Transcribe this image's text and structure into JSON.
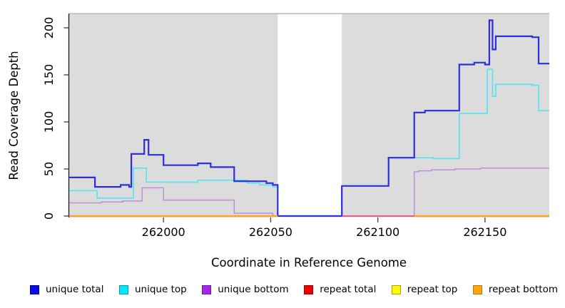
{
  "chart_data": {
    "type": "line",
    "subtype": "step-coverage",
    "title": "",
    "xlabel": "Coordinate in Reference Genome",
    "ylabel": "Read Coverage Depth",
    "xlim": [
      261956,
      262180
    ],
    "ylim": [
      0,
      215
    ],
    "x_ticks": [
      262000,
      262050,
      262100,
      262150
    ],
    "x_tick_labels": [
      "262000",
      "262050",
      "262100",
      "262150"
    ],
    "y_ticks": [
      0,
      50,
      100,
      150,
      200
    ],
    "y_tick_labels": [
      "0",
      "50",
      "100",
      "150",
      "200"
    ],
    "grid": "off",
    "plot_bg": "#DCDCDC",
    "panel_border_color": "#A3A3A3",
    "axis_color": "#1A1A1A",
    "tick_color": "#4D4D4D",
    "gap_region": {
      "x0": 262053.3,
      "x1": 262083.2,
      "fill": "#FFFFFF"
    },
    "legend_position": "bottom",
    "series": [
      {
        "name": "unique total",
        "line_color": "#2D2DE1",
        "legend_fill": "#0B0BE8",
        "legend_border": "#0000A8",
        "width": 2.2,
        "z": 3,
        "points": [
          [
            261956,
            41
          ],
          [
            261968,
            31
          ],
          [
            261980,
            33
          ],
          [
            261984,
            31
          ],
          [
            261985,
            66
          ],
          [
            261991,
            81
          ],
          [
            261993,
            65
          ],
          [
            262000,
            54
          ],
          [
            262016,
            56
          ],
          [
            262022,
            52
          ],
          [
            262033,
            37
          ],
          [
            262048,
            35
          ],
          [
            262051,
            33
          ],
          [
            262053.3,
            0
          ],
          [
            262083.2,
            32
          ],
          [
            262105,
            62
          ],
          [
            262117,
            110
          ],
          [
            262122,
            112
          ],
          [
            262138,
            161
          ],
          [
            262145,
            163
          ],
          [
            262150,
            161
          ],
          [
            262152,
            208
          ],
          [
            262153.5,
            177
          ],
          [
            262155,
            191
          ],
          [
            262172,
            190
          ],
          [
            262175,
            162
          ],
          [
            262180,
            162
          ]
        ]
      },
      {
        "name": "unique top",
        "line_color": "#48E6F2",
        "legend_fill": "#00E8FF",
        "legend_border": "#00A0B8",
        "width": 1.5,
        "z": 1,
        "points": [
          [
            261956,
            27
          ],
          [
            261969,
            19
          ],
          [
            261986,
            51
          ],
          [
            261992,
            36
          ],
          [
            262016,
            38
          ],
          [
            262039,
            35
          ],
          [
            262045,
            33
          ],
          [
            262051,
            31
          ],
          [
            262053.3,
            0
          ],
          [
            262083.2,
            null
          ],
          [
            262117,
            62
          ],
          [
            262126,
            61
          ],
          [
            262138,
            109
          ],
          [
            262151,
            156
          ],
          [
            262153.5,
            127
          ],
          [
            262155,
            140
          ],
          [
            262172,
            139
          ],
          [
            262175,
            112
          ],
          [
            262180,
            112
          ]
        ]
      },
      {
        "name": "unique bottom",
        "line_color": "#BE8EDC",
        "legend_fill": "#A326EE",
        "legend_border": "#7718AE",
        "width": 1.5,
        "z": 2,
        "points": [
          [
            261956,
            14
          ],
          [
            261971,
            15
          ],
          [
            261981,
            16
          ],
          [
            261990,
            30
          ],
          [
            262000,
            17
          ],
          [
            262033,
            3
          ],
          [
            262051,
            0
          ],
          [
            262117,
            47
          ],
          [
            262119,
            48
          ],
          [
            262125,
            49
          ],
          [
            262136,
            50
          ],
          [
            262148,
            51
          ],
          [
            262180,
            51
          ]
        ]
      },
      {
        "name": "repeat total",
        "line_color": "#E0485E",
        "legend_fill": "#F00000",
        "legend_border": "#A80000",
        "width": 1.6,
        "z": 4,
        "points": [
          [
            262083.2,
            0
          ],
          [
            262117,
            0
          ]
        ]
      },
      {
        "name": "repeat top",
        "line_color": "#F0E020",
        "legend_fill": "#FCFC00",
        "legend_border": "#A8A800",
        "width": 1.4,
        "z": 5,
        "points": [
          [
            261956,
            0
          ],
          [
            262053.3,
            null
          ],
          [
            262117,
            0
          ],
          [
            262180,
            0
          ]
        ]
      },
      {
        "name": "repeat bottom",
        "line_color": "#FFA41E",
        "legend_fill": "#FFA510",
        "legend_border": "#BD7A00",
        "width": 2.2,
        "z": 6,
        "points": [
          [
            261956,
            0
          ],
          [
            262053.3,
            null
          ],
          [
            262117,
            0
          ],
          [
            262180,
            0
          ]
        ]
      }
    ]
  },
  "legend": {
    "items": [
      {
        "label": "unique total"
      },
      {
        "label": "unique top"
      },
      {
        "label": "unique bottom"
      },
      {
        "label": "repeat total"
      },
      {
        "label": "repeat top"
      },
      {
        "label": "repeat bottom"
      }
    ]
  }
}
